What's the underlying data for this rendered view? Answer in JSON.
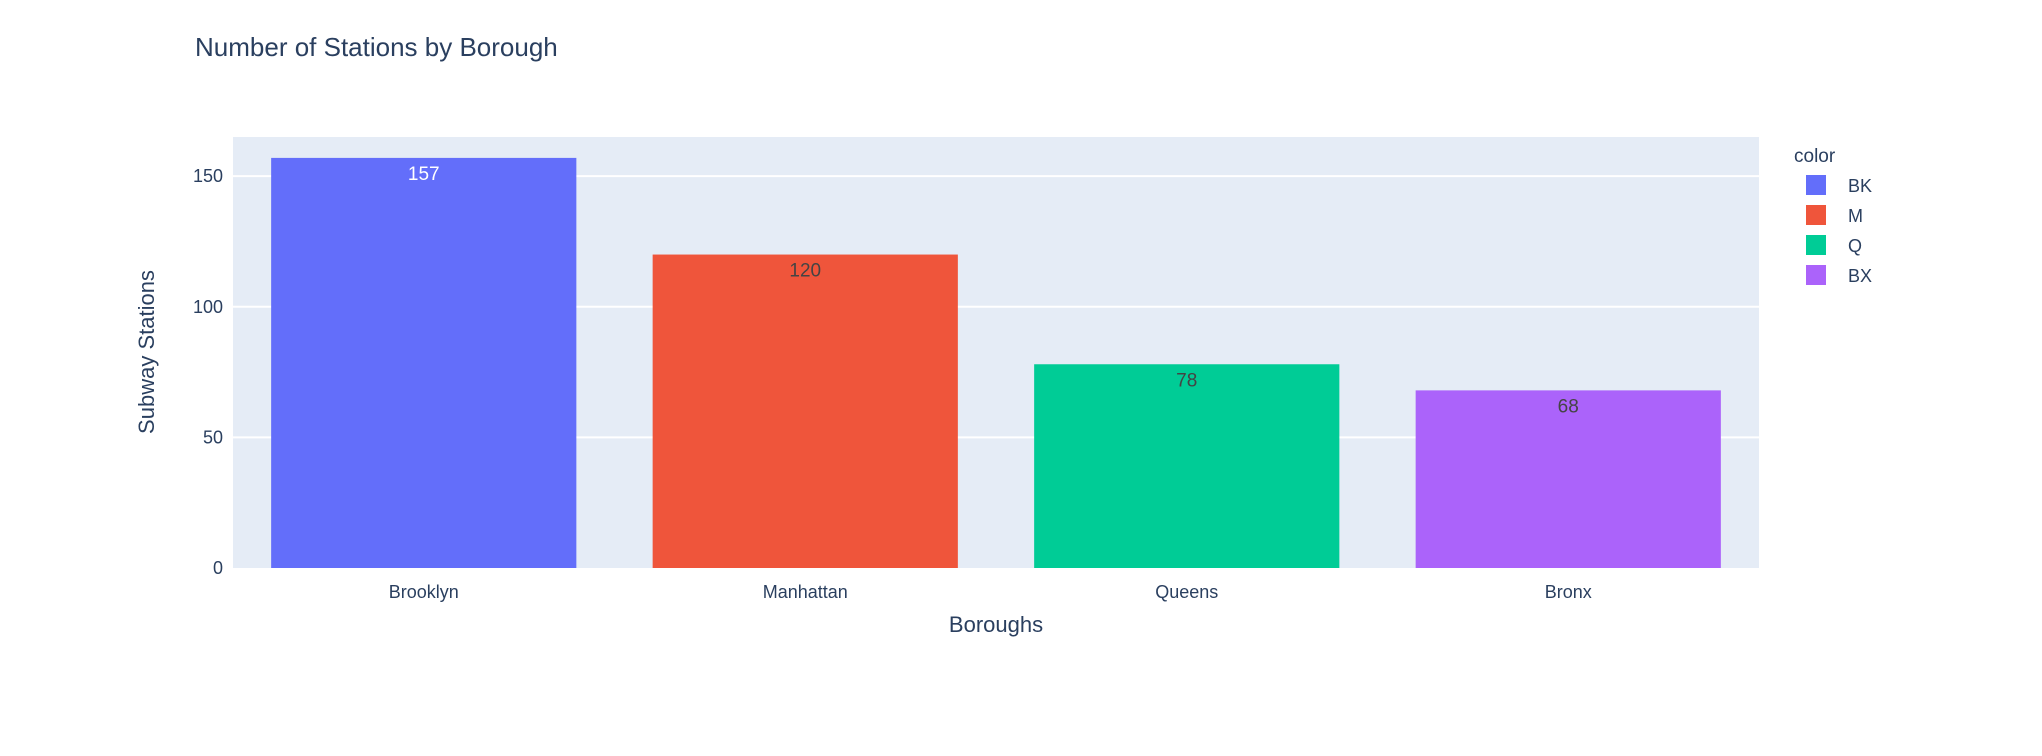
{
  "chart_data": {
    "type": "bar",
    "title": "Number of Stations by Borough",
    "xlabel": "Boroughs",
    "ylabel": "Subway Stations",
    "categories": [
      "Brooklyn",
      "Manhattan",
      "Queens",
      "Bronx"
    ],
    "values": [
      157,
      120,
      78,
      68
    ],
    "data_labels": [
      "157",
      "120",
      "78",
      "68"
    ],
    "ylim": [
      0,
      165
    ],
    "yticks": [
      0,
      50,
      100,
      150
    ],
    "grid": true,
    "legend": {
      "title": "color",
      "placement": "right",
      "entries": [
        {
          "label": "BK",
          "color": "#636efa"
        },
        {
          "label": "M",
          "color": "#EF553B"
        },
        {
          "label": "Q",
          "color": "#00cc96"
        },
        {
          "label": "BX",
          "color": "#ab63fa"
        }
      ]
    },
    "bar_colors": [
      "#636efa",
      "#EF553B",
      "#00cc96",
      "#ab63fa"
    ],
    "label_colors": [
      "#ffffff",
      "#444444",
      "#444444",
      "#444444"
    ],
    "plot_background": "#e5ecf6",
    "grid_color": "#ffffff"
  }
}
